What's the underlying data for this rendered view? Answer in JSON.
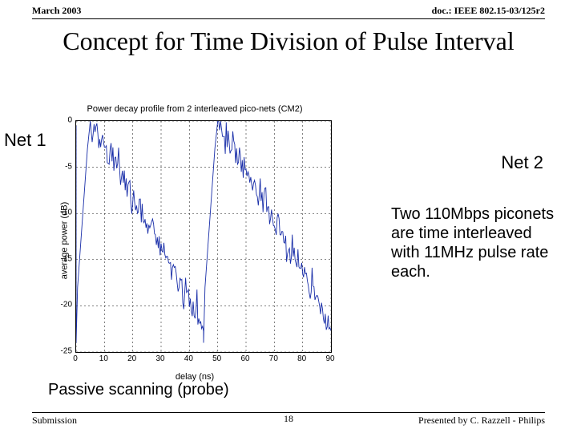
{
  "header": {
    "date": "March 2003",
    "docid": "doc.: IEEE 802.15-03/125r2"
  },
  "title": "Concept for Time Division of Pulse Interval",
  "chart": {
    "title": "Power decay profile from 2 interleaved pico-nets (CM2)",
    "ylabel": "average power (dB)",
    "xlabel": "delay (ns)",
    "xlim": [
      0,
      90
    ],
    "ylim": [
      -25,
      0
    ],
    "xtick_step": 10,
    "ytick_step": 5,
    "xticks": [
      0,
      10,
      20,
      30,
      40,
      50,
      60,
      70,
      80,
      90
    ],
    "yticks": [
      0,
      -5,
      -10,
      -15,
      -20,
      -25
    ],
    "line_color": "#182da8",
    "grid_color": "#000000",
    "line_width": 0.9,
    "background_color": "#ffffff",
    "net1": {
      "start_x": 0,
      "peak_x": 5,
      "end_x": 45,
      "peak_y": 0,
      "end_y": -22
    },
    "net2": {
      "start_x": 45,
      "peak_x": 50,
      "end_x": 90,
      "peak_y": 0,
      "end_y": -22
    },
    "noise_amp": 2.4
  },
  "annotations": {
    "net1_label": "Net 1",
    "net2_label": "Net 2",
    "description": "Two 110Mbps piconets are time interleaved with 11MHz pulse rate each.",
    "passive": "Passive scanning (probe)"
  },
  "footer": {
    "left": "Submission",
    "page": "18",
    "right": "Presented by C. Razzell - Philips"
  }
}
